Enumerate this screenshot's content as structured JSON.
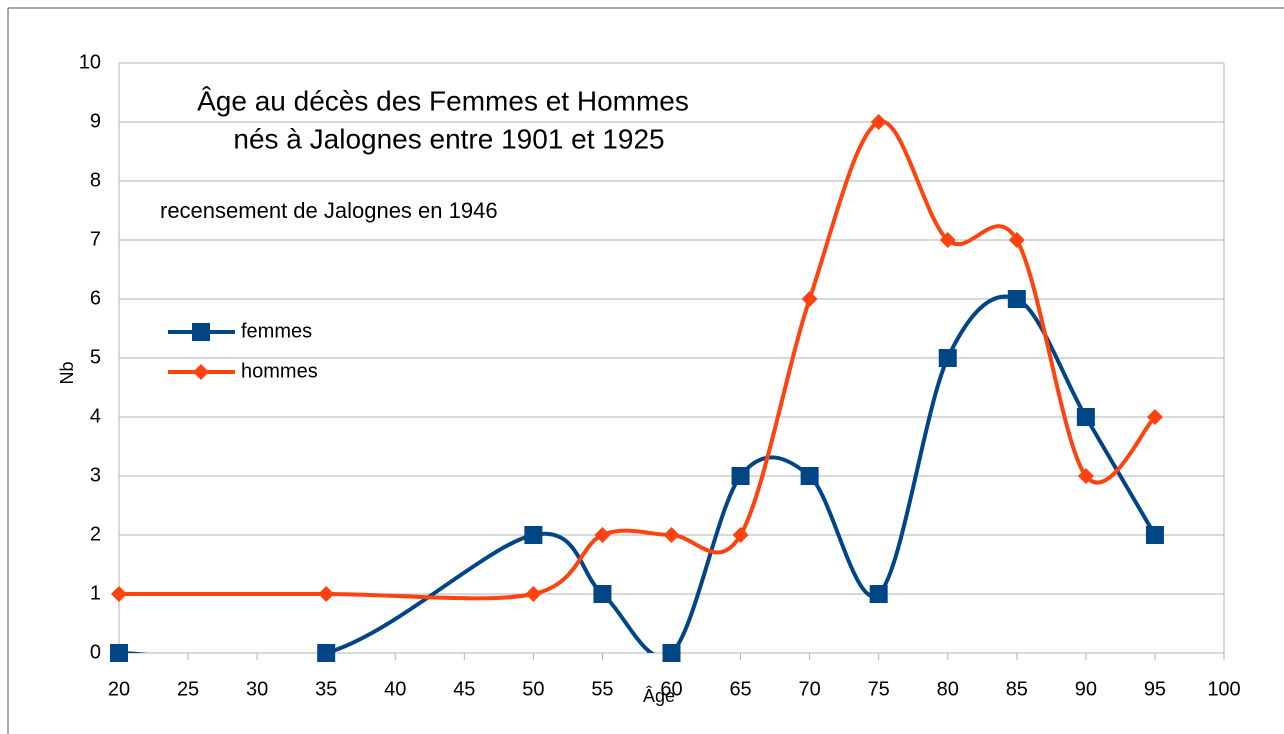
{
  "chart_data": {
    "type": "line",
    "title": [
      "Âge au décès des Femmes et Hommes",
      "nés à Jalognes entre 1901 et 1925"
    ],
    "subtitle": "recensement de Jalognes en 1946",
    "x_label": "Âge",
    "y_label": "Nb",
    "x": [
      20,
      35,
      50,
      55,
      60,
      65,
      70,
      75,
      80,
      85,
      90,
      95
    ],
    "series": [
      {
        "name": "femmes",
        "color": "#004586",
        "marker": "square",
        "values": [
          0,
          0,
          2,
          1,
          0,
          3,
          3,
          1,
          5,
          6,
          4,
          2
        ]
      },
      {
        "name": "hommes",
        "color": "#ff420e",
        "marker": "diamond",
        "values": [
          1,
          1,
          1,
          2,
          2,
          2,
          6,
          9,
          7,
          7,
          3,
          4
        ]
      }
    ],
    "xlim": [
      20,
      100
    ],
    "xticks": [
      20,
      25,
      30,
      35,
      40,
      45,
      50,
      55,
      60,
      65,
      70,
      75,
      80,
      85,
      90,
      95,
      100
    ],
    "ylim": [
      0,
      10
    ],
    "yticks": [
      0,
      1,
      2,
      3,
      4,
      5,
      6,
      7,
      8,
      9,
      10
    ],
    "grid": true,
    "smooth": true,
    "legend": "left"
  }
}
